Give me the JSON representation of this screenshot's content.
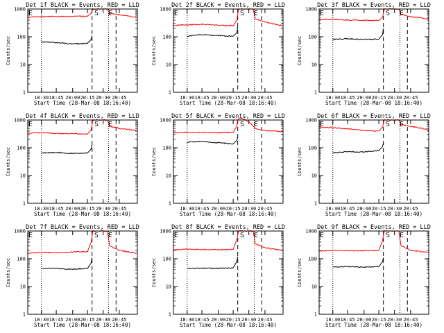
{
  "chart_data": [
    {
      "type": "line",
      "title": "Det 1f BLACK = Events, RED = LLD",
      "xlabel": "Start Time (28-Mar-08 18:16:40)",
      "ylabel": "Counts/sec",
      "yscale": "log",
      "ylim": [
        1,
        1000
      ],
      "yticks": [
        1,
        10,
        100,
        1000
      ],
      "yticklabels": [
        "1",
        "10",
        "100",
        "1000"
      ],
      "xlim": [
        "18:16:40",
        "20:58:20"
      ],
      "xticks": [
        "18:30",
        "18:45",
        "20:00",
        "20:15",
        "20:30",
        "20:45"
      ],
      "dotted_vlines": [
        "18:30",
        "20:35"
      ],
      "dashed_vlines": [
        "20:20",
        "20:42"
      ],
      "markers": [
        {
          "text": "E",
          "at": "18:16:40"
        },
        {
          "text": "S",
          "at": "20:21"
        },
        {
          "text": "E",
          "at": "20:34"
        }
      ],
      "series": [
        {
          "color": "#000000",
          "x": [
            "18:30",
            "18:45",
            "20:00",
            "20:15",
            "20:19",
            "20:20"
          ],
          "y": [
            65,
            62,
            55,
            58,
            80,
            110
          ]
        },
        {
          "color": "#ff0000",
          "x": [
            "18:16:40",
            "18:30",
            "18:45",
            "20:00",
            "20:15",
            "20:19",
            "20:21",
            "20:34",
            "20:36",
            "20:45",
            "20:58"
          ],
          "y": [
            520,
            530,
            540,
            540,
            550,
            700,
            1000,
            1000,
            700,
            620,
            500
          ]
        }
      ]
    },
    {
      "type": "line",
      "title": "Det 2f BLACK = Events, RED = LLD",
      "xlabel": "Start Time (28-Mar-08 18:16:40)",
      "ylabel": "Counts/sec",
      "yscale": "log",
      "ylim": [
        1,
        1000
      ],
      "yticks": [
        1,
        10,
        100,
        1000
      ],
      "yticklabels": [
        "1",
        "10",
        "100",
        "1000"
      ],
      "xlim": [
        "18:16:40",
        "20:58:20"
      ],
      "xticks": [
        "18:30",
        "18:45",
        "20:00",
        "20:15",
        "20:30",
        "20:45"
      ],
      "dotted_vlines": [
        "18:30",
        "20:35"
      ],
      "dashed_vlines": [
        "20:20",
        "20:42"
      ],
      "markers": [
        {
          "text": "E",
          "at": "18:16:40"
        },
        {
          "text": "S",
          "at": "20:21"
        },
        {
          "text": "E",
          "at": "20:34"
        }
      ],
      "series": [
        {
          "color": "#000000",
          "x": [
            "18:30",
            "18:45",
            "20:00",
            "20:15",
            "20:19",
            "20:20"
          ],
          "y": [
            105,
            120,
            110,
            105,
            140,
            230
          ]
        },
        {
          "color": "#ff0000",
          "x": [
            "18:16:40",
            "18:30",
            "18:45",
            "20:00",
            "20:15",
            "20:19",
            "20:21",
            "20:34",
            "20:36",
            "20:45",
            "20:58"
          ],
          "y": [
            260,
            270,
            280,
            260,
            250,
            400,
            1000,
            1000,
            450,
            340,
            250
          ]
        }
      ]
    },
    {
      "type": "line",
      "title": "Det 3f BLACK = Events, RED = LLD",
      "xlabel": "Start Time (28-Mar-08 18:16:40)",
      "ylabel": "Counts/sec",
      "yscale": "log",
      "ylim": [
        1,
        1000
      ],
      "yticks": [
        1,
        10,
        100,
        1000
      ],
      "yticklabels": [
        "1",
        "10",
        "100",
        "1000"
      ],
      "xlim": [
        "18:16:40",
        "20:58:20"
      ],
      "xticks": [
        "18:30",
        "18:45",
        "20:00",
        "20:15",
        "20:30",
        "20:45"
      ],
      "dotted_vlines": [
        "18:30",
        "20:35"
      ],
      "dashed_vlines": [
        "20:20",
        "20:42"
      ],
      "markers": [
        {
          "text": "E",
          "at": "18:16:40"
        },
        {
          "text": "S",
          "at": "20:21"
        },
        {
          "text": "E",
          "at": "20:34"
        }
      ],
      "series": [
        {
          "color": "#000000",
          "x": [
            "18:30",
            "18:45",
            "20:00",
            "20:15",
            "20:19",
            "20:20"
          ],
          "y": [
            80,
            85,
            80,
            82,
            120,
            200
          ]
        },
        {
          "color": "#ff0000",
          "x": [
            "18:16:40",
            "18:30",
            "18:45",
            "20:00",
            "20:15",
            "20:19",
            "20:21",
            "20:34",
            "20:36",
            "20:45",
            "20:58"
          ],
          "y": [
            420,
            430,
            400,
            390,
            380,
            500,
            1000,
            1000,
            650,
            520,
            450
          ]
        }
      ]
    },
    {
      "type": "line",
      "title": "Det 4f BLACK = Events, RED = LLD",
      "xlabel": "Start Time (28-Mar-08 18:16:40)",
      "ylabel": "Counts/sec",
      "yscale": "log",
      "ylim": [
        1,
        1000
      ],
      "yticks": [
        1,
        10,
        100,
        1000
      ],
      "yticklabels": [
        "1",
        "10",
        "100",
        "1000"
      ],
      "xlim": [
        "18:16:40",
        "20:58:20"
      ],
      "xticks": [
        "18:30",
        "18:45",
        "20:00",
        "20:15",
        "20:30",
        "20:45"
      ],
      "dotted_vlines": [
        "18:30",
        "20:35"
      ],
      "dashed_vlines": [
        "20:20",
        "20:42"
      ],
      "markers": [
        {
          "text": "E",
          "at": "18:16:40"
        },
        {
          "text": "S",
          "at": "20:21"
        },
        {
          "text": "E",
          "at": "20:34"
        }
      ],
      "series": [
        {
          "color": "#000000",
          "x": [
            "18:30",
            "18:45",
            "20:00",
            "20:15",
            "20:19",
            "20:20"
          ],
          "y": [
            65,
            68,
            62,
            65,
            90,
            130
          ]
        },
        {
          "color": "#ff0000",
          "x": [
            "18:16:40",
            "18:30",
            "18:45",
            "20:00",
            "20:15",
            "20:19",
            "20:21",
            "20:34",
            "20:36",
            "20:45",
            "20:58"
          ],
          "y": [
            340,
            350,
            330,
            320,
            310,
            450,
            1000,
            1000,
            600,
            500,
            420
          ]
        }
      ]
    },
    {
      "type": "line",
      "title": "Det 5f BLACK = Events, RED = LLD",
      "xlabel": "Start Time (28-Mar-08 18:16:40)",
      "ylabel": "Counts/sec",
      "yscale": "log",
      "ylim": [
        1,
        1000
      ],
      "yticks": [
        1,
        10,
        100,
        1000
      ],
      "yticklabels": [
        "1",
        "10",
        "100",
        "1000"
      ],
      "xlim": [
        "18:16:40",
        "20:58:20"
      ],
      "xticks": [
        "18:30",
        "18:45",
        "20:00",
        "20:15",
        "20:30",
        "20:45"
      ],
      "dotted_vlines": [
        "18:30",
        "20:35"
      ],
      "dashed_vlines": [
        "20:20",
        "20:42"
      ],
      "markers": [
        {
          "text": "S",
          "at": "20:21"
        },
        {
          "text": "E",
          "at": "20:34"
        }
      ],
      "series": [
        {
          "color": "#000000",
          "x": [
            "18:30",
            "18:45",
            "20:00",
            "20:15",
            "20:19",
            "20:20"
          ],
          "y": [
            160,
            170,
            150,
            140,
            180,
            250
          ]
        },
        {
          "color": "#ff0000",
          "x": [
            "18:16:40",
            "18:30",
            "18:45",
            "20:00",
            "20:15",
            "20:19",
            "20:20",
            "20:22",
            "20:27",
            "20:31",
            "20:36",
            "20:40",
            "20:45",
            "20:58"
          ],
          "y": [
            350,
            360,
            360,
            350,
            360,
            600,
            1000,
            1200,
            1000,
            800,
            500,
            450,
            420,
            380
          ]
        }
      ]
    },
    {
      "type": "line",
      "title": "Det 6f BLACK = Events, RED = LLD",
      "xlabel": "Start Time (28-Mar-08 18:16:40)",
      "ylabel": "Counts/sec",
      "yscale": "log",
      "ylim": [
        1,
        1000
      ],
      "yticks": [
        1,
        10,
        100,
        1000
      ],
      "yticklabels": [
        "1",
        "10",
        "100",
        "1000"
      ],
      "xlim": [
        "18:16:40",
        "20:58:20"
      ],
      "xticks": [
        "18:30",
        "18:45",
        "20:00",
        "20:15",
        "20:30",
        "20:45"
      ],
      "dotted_vlines": [
        "18:30",
        "20:35"
      ],
      "dashed_vlines": [
        "20:20",
        "20:42"
      ],
      "markers": [
        {
          "text": "E",
          "at": "18:16:40"
        },
        {
          "text": "S",
          "at": "20:21"
        },
        {
          "text": "E",
          "at": "20:34"
        }
      ],
      "series": [
        {
          "color": "#000000",
          "x": [
            "18:30",
            "18:45",
            "20:00",
            "20:15",
            "20:19",
            "20:20"
          ],
          "y": [
            65,
            72,
            70,
            80,
            110,
            150
          ]
        },
        {
          "color": "#ff0000",
          "x": [
            "18:16:40",
            "18:30",
            "18:45",
            "20:00",
            "20:15",
            "20:19",
            "20:21",
            "20:34",
            "20:36",
            "20:45",
            "20:58"
          ],
          "y": [
            560,
            530,
            480,
            420,
            400,
            550,
            1000,
            1000,
            700,
            600,
            450
          ]
        }
      ]
    },
    {
      "type": "line",
      "title": "Det 7f BLACK = Events, RED = LLD",
      "xlabel": "Start Time (28-Mar-08 18:16:40)",
      "ylabel": "Counts/sec",
      "yscale": "log",
      "ylim": [
        1,
        1000
      ],
      "yticks": [
        1,
        10,
        100,
        1000
      ],
      "yticklabels": [
        "1",
        "10",
        "100",
        "1000"
      ],
      "xlim": [
        "18:16:40",
        "20:58:20"
      ],
      "xticks": [
        "18:30",
        "18:45",
        "20:00",
        "20:15",
        "20:30",
        "20:45"
      ],
      "dotted_vlines": [
        "18:30",
        "20:35"
      ],
      "dashed_vlines": [
        "20:20",
        "20:42"
      ],
      "markers": [
        {
          "text": "E",
          "at": "18:16:40"
        },
        {
          "text": "S",
          "at": "20:21"
        },
        {
          "text": "E",
          "at": "20:34"
        }
      ],
      "series": [
        {
          "color": "#000000",
          "x": [
            "18:30",
            "18:45",
            "20:00",
            "20:15",
            "20:19",
            "20:20"
          ],
          "y": [
            45,
            45,
            42,
            45,
            70,
            110
          ]
        },
        {
          "color": "#ff0000",
          "x": [
            "18:16:40",
            "18:30",
            "18:45",
            "20:00",
            "20:15",
            "20:19",
            "20:21",
            "20:34",
            "20:36",
            "20:45",
            "20:58"
          ],
          "y": [
            160,
            170,
            165,
            175,
            180,
            400,
            1000,
            1000,
            300,
            200,
            160
          ]
        }
      ]
    },
    {
      "type": "line",
      "title": "Det 8f BLACK = Events, RED = LLD",
      "xlabel": "Start Time (28-Mar-08 18:16:40)",
      "ylabel": "Counts/sec",
      "yscale": "log",
      "ylim": [
        1,
        1000
      ],
      "yticks": [
        1,
        10,
        100,
        1000
      ],
      "yticklabels": [
        "1",
        "10",
        "100",
        "1000"
      ],
      "xlim": [
        "18:16:40",
        "20:58:20"
      ],
      "xticks": [
        "18:30",
        "18:45",
        "20:00",
        "20:15",
        "20:30",
        "20:45"
      ],
      "dotted_vlines": [
        "18:30",
        "20:35"
      ],
      "dashed_vlines": [
        "20:20",
        "20:42"
      ],
      "markers": [
        {
          "text": "E",
          "at": "18:16:40"
        },
        {
          "text": "S",
          "at": "20:21"
        },
        {
          "text": "E",
          "at": "20:34"
        }
      ],
      "series": [
        {
          "color": "#000000",
          "x": [
            "18:30",
            "18:45",
            "20:00",
            "20:15",
            "20:19",
            "20:20"
          ],
          "y": [
            45,
            46,
            45,
            47,
            80,
            120
          ]
        },
        {
          "color": "#ff0000",
          "x": [
            "18:16:40",
            "18:30",
            "18:45",
            "20:00",
            "20:15",
            "20:19",
            "20:21",
            "20:34",
            "20:36",
            "20:45",
            "20:58"
          ],
          "y": [
            210,
            220,
            215,
            210,
            220,
            500,
            1000,
            1000,
            350,
            250,
            200
          ]
        }
      ]
    },
    {
      "type": "line",
      "title": "Det 9f BLACK = Events, RED = LLD",
      "xlabel": "Start Time (28-Mar-08 18:16:40)",
      "ylabel": "Counts/sec",
      "yscale": "log",
      "ylim": [
        1,
        1000
      ],
      "yticks": [
        1,
        10,
        100,
        1000
      ],
      "yticklabels": [
        "1",
        "10",
        "100",
        "1000"
      ],
      "xlim": [
        "18:16:40",
        "20:58:20"
      ],
      "xticks": [
        "18:30",
        "18:45",
        "20:00",
        "20:15",
        "20:30",
        "20:45"
      ],
      "dotted_vlines": [
        "18:30",
        "20:35"
      ],
      "dashed_vlines": [
        "20:20",
        "20:42"
      ],
      "markers": [
        {
          "text": "E",
          "at": "18:16:40"
        },
        {
          "text": "S",
          "at": "20:21"
        },
        {
          "text": "E",
          "at": "20:34"
        }
      ],
      "series": [
        {
          "color": "#000000",
          "x": [
            "18:30",
            "18:45",
            "20:00",
            "20:15",
            "20:19",
            "20:20"
          ],
          "y": [
            50,
            52,
            50,
            52,
            80,
            110
          ]
        },
        {
          "color": "#ff0000",
          "x": [
            "18:16:40",
            "18:30",
            "18:45",
            "20:00",
            "20:15",
            "20:19",
            "20:21",
            "20:34",
            "20:36",
            "20:45",
            "20:58"
          ],
          "y": [
            190,
            200,
            195,
            195,
            200,
            450,
            1000,
            1000,
            300,
            200,
            170
          ]
        }
      ]
    }
  ]
}
